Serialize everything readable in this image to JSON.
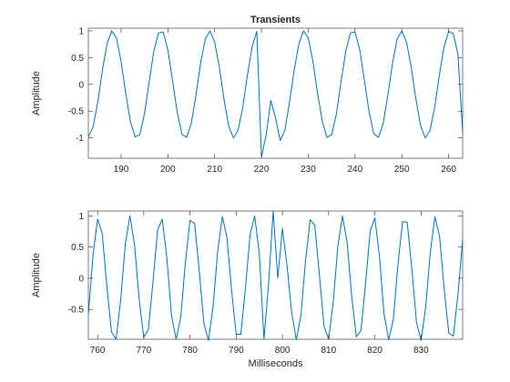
{
  "chart_data": [
    {
      "type": "line",
      "title": "Transients",
      "xlabel": "",
      "ylabel": "Amplitude",
      "xlim": [
        183,
        263
      ],
      "ylim": [
        -1.38,
        1.05
      ],
      "xticks": [
        190,
        200,
        210,
        220,
        230,
        240,
        250,
        260
      ],
      "yticks": [
        -1,
        -0.5,
        0,
        0.5,
        1
      ],
      "grid": false,
      "series": [
        {
          "color": "#0072BD",
          "x": [
            183,
            184,
            185,
            186,
            187,
            188,
            189,
            190,
            191,
            192,
            193,
            194,
            195,
            196,
            197,
            198,
            199,
            200,
            201,
            202,
            203,
            204,
            205,
            206,
            207,
            208,
            209,
            210,
            211,
            212,
            213,
            214,
            215,
            216,
            217,
            218,
            219,
            220,
            221,
            222,
            223,
            224,
            225,
            226,
            227,
            228,
            229,
            230,
            231,
            232,
            233,
            234,
            235,
            236,
            237,
            238,
            239,
            240,
            241,
            242,
            243,
            244,
            245,
            246,
            247,
            248,
            249,
            250,
            251,
            252,
            253,
            254,
            255,
            256,
            257,
            258,
            259,
            260,
            261,
            262,
            263
          ],
          "y": [
            -0.98,
            -0.8,
            -0.34,
            0.26,
            0.76,
            1.0,
            0.87,
            0.43,
            -0.17,
            -0.7,
            -0.98,
            -0.94,
            -0.55,
            0.05,
            0.62,
            0.96,
            0.98,
            0.64,
            0.07,
            -0.52,
            -0.93,
            -0.99,
            -0.73,
            -0.2,
            0.4,
            0.85,
            1.0,
            0.79,
            0.32,
            -0.28,
            -0.78,
            -1.0,
            -0.86,
            -0.43,
            0.17,
            0.7,
            0.99,
            -1.35,
            -0.95,
            -0.3,
            -0.62,
            -1.05,
            -0.86,
            -0.33,
            0.27,
            0.76,
            1.0,
            0.87,
            0.43,
            -0.17,
            -0.69,
            -0.99,
            -0.94,
            -0.56,
            0.04,
            0.61,
            0.96,
            0.98,
            0.65,
            0.08,
            -0.51,
            -0.92,
            -0.99,
            -0.74,
            -0.21,
            0.39,
            0.85,
            1.0,
            0.79,
            0.33,
            -0.27,
            -0.77,
            -1.0,
            -0.87,
            -0.44,
            0.16,
            0.69,
            0.99,
            0.95,
            0.56,
            -0.9
          ]
        }
      ]
    },
    {
      "type": "line",
      "title": "",
      "xlabel": "Milliseconds",
      "ylabel": "Amplitude",
      "xlim": [
        758,
        839
      ],
      "ylim": [
        -0.98,
        1.08
      ],
      "xticks": [
        760,
        770,
        780,
        790,
        800,
        810,
        820,
        830
      ],
      "yticks": [
        -0.5,
        0,
        0.5,
        1
      ],
      "grid": false,
      "series": [
        {
          "color": "#0072BD",
          "x": [
            758,
            759,
            760,
            761,
            762,
            763,
            764,
            765,
            766,
            767,
            768,
            769,
            770,
            771,
            772,
            773,
            774,
            775,
            776,
            777,
            778,
            779,
            780,
            781,
            782,
            783,
            784,
            785,
            786,
            787,
            788,
            789,
            790,
            791,
            792,
            793,
            794,
            795,
            796,
            797,
            798,
            799,
            800,
            801,
            802,
            803,
            804,
            805,
            806,
            807,
            808,
            809,
            810,
            811,
            812,
            813,
            814,
            815,
            816,
            817,
            818,
            819,
            820,
            821,
            822,
            823,
            824,
            825,
            826,
            827,
            828,
            829,
            830,
            831,
            832,
            833,
            834,
            835,
            836,
            837,
            838,
            839
          ],
          "y": [
            -0.58,
            0.36,
            0.95,
            0.72,
            -0.12,
            -0.86,
            -0.98,
            -0.35,
            0.55,
            1.0,
            0.54,
            -0.34,
            -0.95,
            -0.82,
            -0.05,
            0.78,
            0.95,
            0.32,
            -0.6,
            -0.98,
            -0.63,
            0.25,
            0.93,
            0.88,
            0.12,
            -0.72,
            -1.0,
            -0.45,
            0.44,
            0.99,
            0.65,
            -0.2,
            -0.9,
            -0.9,
            -0.16,
            0.7,
            1.0,
            0.4,
            -0.98,
            -0.1,
            1.08,
            0.0,
            0.8,
            0.2,
            -0.55,
            -0.99,
            -0.6,
            0.28,
            0.94,
            0.85,
            0.06,
            -0.77,
            -0.98,
            -0.38,
            0.52,
            1.0,
            0.58,
            -0.3,
            -0.94,
            -0.84,
            -0.08,
            0.76,
            0.97,
            0.35,
            -0.58,
            -0.99,
            -0.66,
            0.22,
            0.91,
            0.9,
            0.16,
            -0.7,
            -1.0,
            -0.47,
            0.42,
            0.99,
            0.68,
            -0.17,
            -0.88,
            -0.93,
            -0.25,
            0.62
          ]
        }
      ]
    }
  ]
}
